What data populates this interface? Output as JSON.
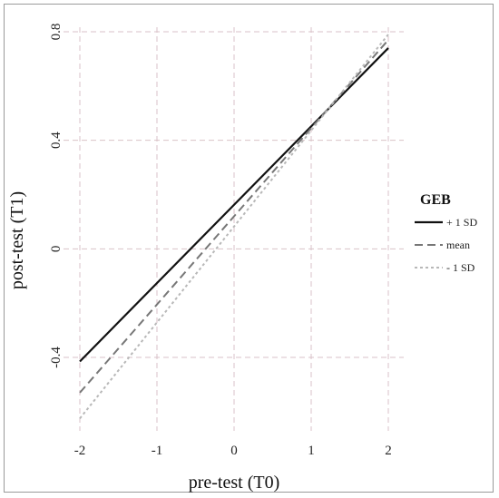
{
  "chart_data": {
    "type": "line",
    "title": "",
    "xlabel": "pre-test (T0)",
    "ylabel": "post-test (T1)",
    "xlim": [
      -2,
      2
    ],
    "ylim": [
      -0.5,
      0.8
    ],
    "xticks": [
      -2,
      -1,
      0,
      1,
      2
    ],
    "xtick_labels": [
      "-2",
      "-1",
      "0",
      "1",
      "2"
    ],
    "yticks": [
      -0.4,
      0,
      0.4,
      0.8
    ],
    "ytick_labels": [
      "-0.4",
      "0",
      "0.4",
      "0.8"
    ],
    "grid": true,
    "legend": {
      "title": "GEB",
      "position": "right"
    },
    "series": [
      {
        "name": "+ 1 SD",
        "x": [
          -2,
          2
        ],
        "y": [
          -0.415,
          0.74
        ],
        "color": "#111111",
        "dash": "solid"
      },
      {
        "name": "mean",
        "x": [
          -2,
          2
        ],
        "y": [
          -0.53,
          0.77
        ],
        "color": "#777777",
        "dash": "dashed"
      },
      {
        "name": "- 1 SD",
        "x": [
          -2,
          2
        ],
        "y": [
          -0.625,
          0.79
        ],
        "color": "#b8b8b8",
        "dash": "dotted"
      }
    ]
  }
}
